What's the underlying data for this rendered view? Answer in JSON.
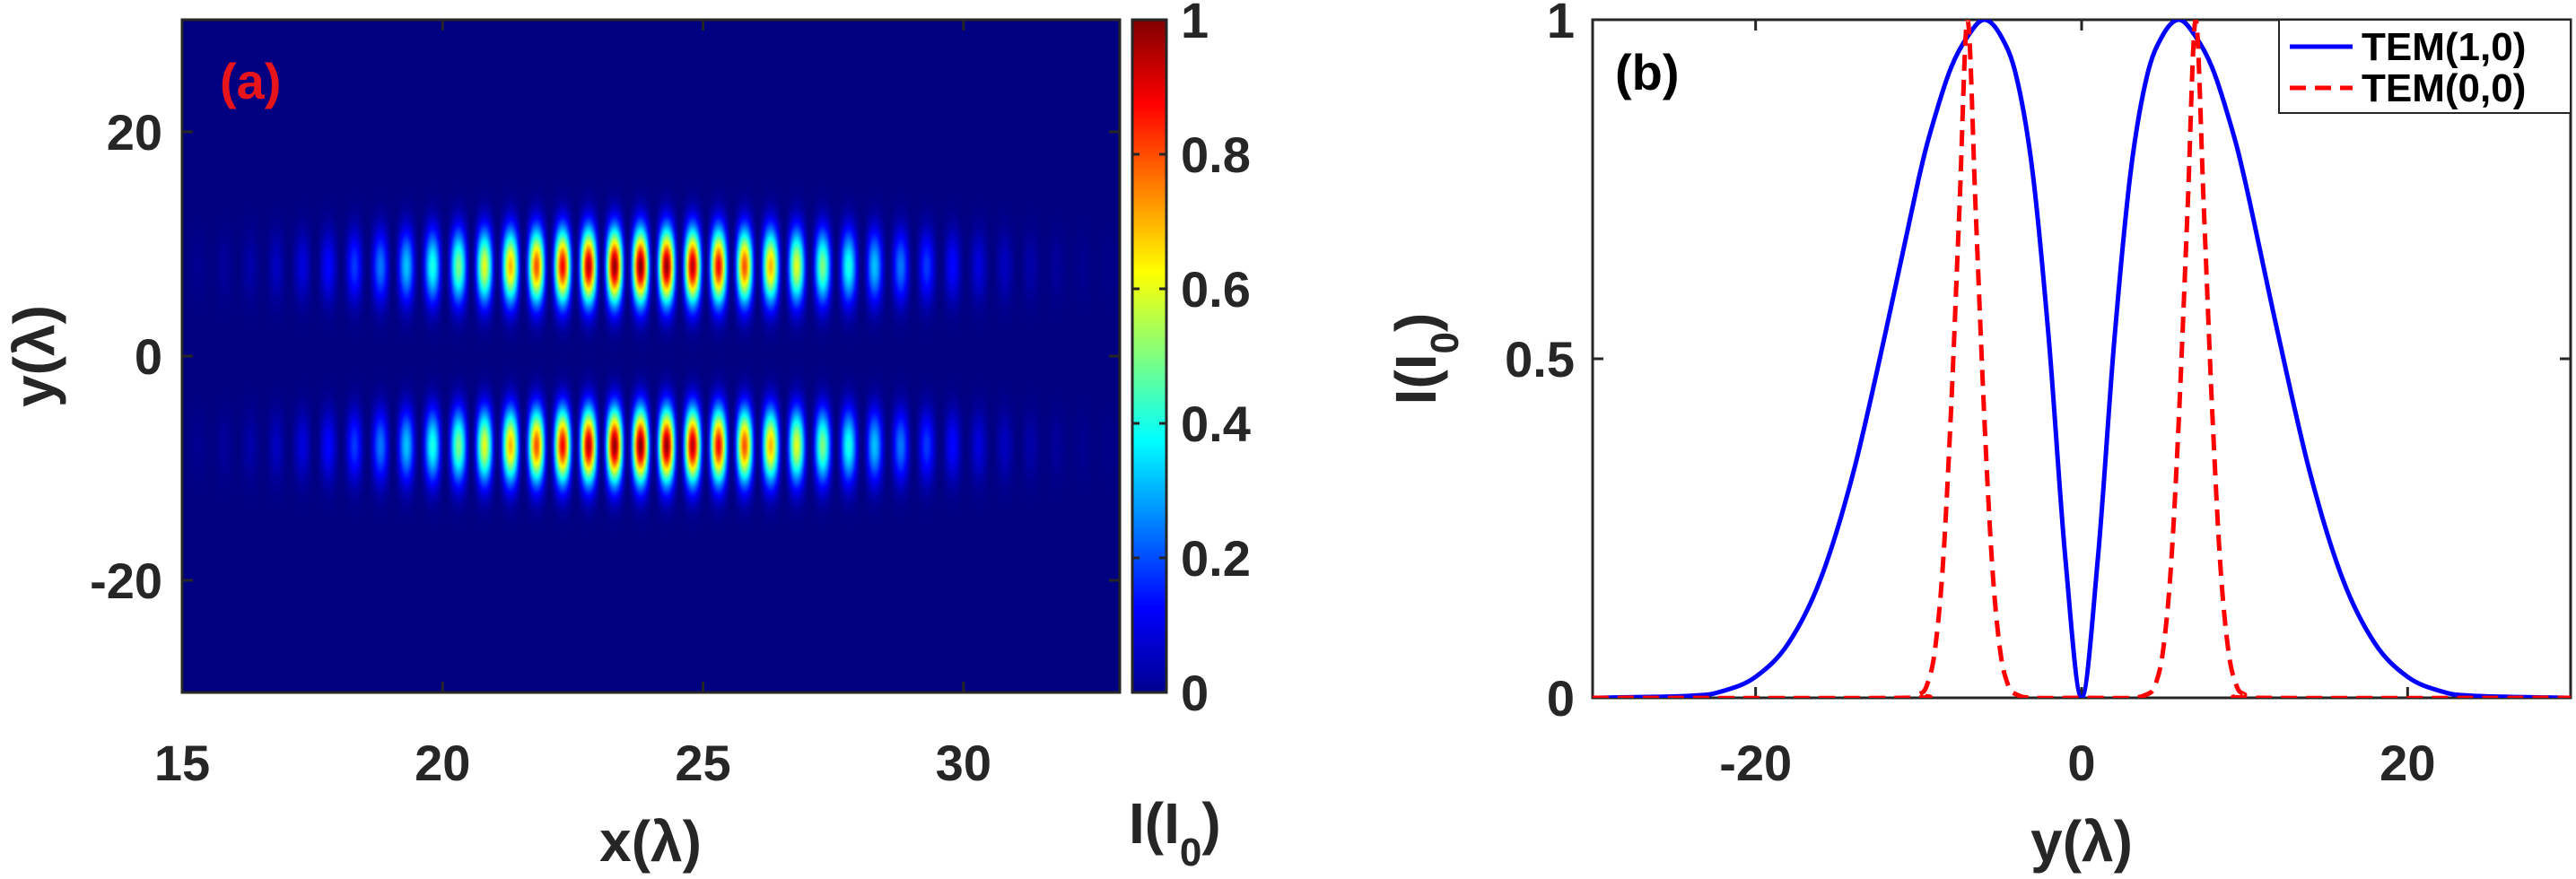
{
  "chart_data": [
    {
      "panel_label": "(a)",
      "panel_label_color": "#e8141c",
      "type": "heatmap",
      "xlabel": "x(λ)",
      "ylabel": "y(λ)",
      "xlim": [
        15,
        33
      ],
      "ylim": [
        -30,
        30
      ],
      "xticks": [
        15,
        20,
        25,
        30
      ],
      "yticks": [
        -20,
        0,
        20
      ],
      "colormap": "jet",
      "colorbar": {
        "label": "I(I",
        "label_sub": "0",
        "label_close": ")",
        "ticks": [
          0,
          0.2,
          0.4,
          0.6,
          0.8,
          1
        ],
        "range": [
          0,
          1
        ]
      },
      "pattern": {
        "description_values": "intensity fringes of a TEM(1,0) pulse",
        "fringe_period": 0.5,
        "envelope_center_x": 23.8,
        "envelope_width_x": 4.2,
        "lobe_center_y": [
          -8,
          8
        ],
        "lobe_width_y": 3.2
      },
      "background": "#00008f"
    },
    {
      "panel_label": "(b)",
      "panel_label_color": "#000000",
      "type": "line",
      "xlabel": "y(λ)",
      "ylabel": "I(I",
      "ylabel_sub": "0",
      "ylabel_close": ")",
      "xlim": [
        -30,
        30
      ],
      "ylim": [
        0,
        1
      ],
      "xticks": [
        -20,
        0,
        20
      ],
      "yticks": [
        0,
        0.5,
        1
      ],
      "legend_position": "top-right",
      "series": [
        {
          "name": "TEM(1,0)",
          "color": "#0000ff",
          "style": "solid",
          "x": [
            -30,
            -24,
            -22,
            -20,
            -18,
            -16,
            -14,
            -12,
            -10,
            -9,
            -8,
            -7,
            -6,
            -5,
            -4,
            -3,
            -2,
            -1,
            0,
            1,
            2,
            3,
            4,
            5,
            6,
            7,
            8,
            9,
            10,
            12,
            14,
            16,
            18,
            20,
            22,
            24,
            30
          ],
          "y": [
            0,
            0.003,
            0.01,
            0.031,
            0.08,
            0.176,
            0.333,
            0.542,
            0.765,
            0.857,
            0.93,
            0.975,
            1,
            0.978,
            0.916,
            0.774,
            0.525,
            0.207,
            0,
            0.207,
            0.525,
            0.774,
            0.916,
            0.978,
            1,
            0.975,
            0.93,
            0.857,
            0.765,
            0.542,
            0.333,
            0.176,
            0.08,
            0.031,
            0.01,
            0.003,
            0
          ]
        },
        {
          "name": "TEM(0,0)",
          "color": "#ff0000",
          "style": "dashed",
          "x": [
            -30,
            -11,
            -10,
            -9.5,
            -9,
            -8.5,
            -8,
            -7.5,
            -7,
            -6.5,
            -6,
            -5.5,
            -5,
            -4.5,
            -4,
            -3,
            0,
            3,
            4,
            4.5,
            5,
            5.5,
            6,
            6.5,
            7,
            7.5,
            8,
            8.5,
            9,
            9.5,
            10,
            11,
            30
          ],
          "y": [
            0,
            0,
            0.005,
            0.018,
            0.07,
            0.2,
            0.43,
            0.72,
            1,
            0.72,
            0.43,
            0.2,
            0.07,
            0.018,
            0.005,
            0,
            0,
            0,
            0.005,
            0.018,
            0.07,
            0.2,
            0.43,
            0.72,
            1,
            0.72,
            0.43,
            0.2,
            0.07,
            0.018,
            0.005,
            0,
            0
          ]
        }
      ]
    }
  ]
}
